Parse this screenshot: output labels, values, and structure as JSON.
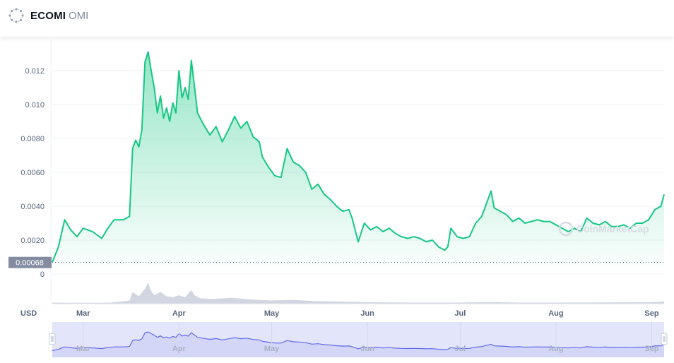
{
  "header": {
    "name": "ECOMI",
    "symbol": "OMI"
  },
  "currency_label": "USD",
  "reference_price_label": "0.00068",
  "watermark": "CoinMarketCap",
  "colors": {
    "line": "#16c784",
    "area_top": "#16c784",
    "volume": "#c2c8d5",
    "navigator_fill": "#e3e5fb",
    "navigator_line": "#6269ea",
    "reference_box": "#858ca2"
  },
  "chart_data": {
    "type": "line",
    "title": "",
    "xlabel": "",
    "ylabel": "",
    "x_ticks": [
      "Mar",
      "Apr",
      "May",
      "Jun",
      "Jul",
      "Aug",
      "Sep"
    ],
    "y_ticks": [
      "0.012",
      "0.010",
      "0.0080",
      "0.0060",
      "0.0040",
      "0.0020",
      "0"
    ],
    "ylim": [
      0,
      0.0131
    ],
    "xlim": [
      "2021-02-19",
      "2021-09-05"
    ],
    "reference_line": 0.00068,
    "grid": true,
    "series": [
      {
        "values": [
          [
            "2021-02-19",
            0.0007
          ],
          [
            "2021-02-21",
            0.0016
          ],
          [
            "2021-02-23",
            0.0032
          ],
          [
            "2021-02-25",
            0.0026
          ],
          [
            "2021-02-27",
            0.0022
          ],
          [
            "2021-03-01",
            0.0027
          ],
          [
            "2021-03-04",
            0.0025
          ],
          [
            "2021-03-07",
            0.0021
          ],
          [
            "2021-03-09",
            0.0027
          ],
          [
            "2021-03-11",
            0.0032
          ],
          [
            "2021-03-14",
            0.0032
          ],
          [
            "2021-03-16",
            0.0034
          ],
          [
            "2021-03-17",
            0.0074
          ],
          [
            "2021-03-18",
            0.0079
          ],
          [
            "2021-03-19",
            0.0075
          ],
          [
            "2021-03-20",
            0.0085
          ],
          [
            "2021-03-21",
            0.0125
          ],
          [
            "2021-03-22",
            0.0131
          ],
          [
            "2021-03-23",
            0.012
          ],
          [
            "2021-03-24",
            0.011
          ],
          [
            "2021-03-25",
            0.0095
          ],
          [
            "2021-03-26",
            0.0105
          ],
          [
            "2021-03-27",
            0.0092
          ],
          [
            "2021-03-28",
            0.0098
          ],
          [
            "2021-03-29",
            0.009
          ],
          [
            "2021-03-30",
            0.0101
          ],
          [
            "2021-03-31",
            0.0095
          ],
          [
            "2021-04-01",
            0.012
          ],
          [
            "2021-04-02",
            0.0104
          ],
          [
            "2021-04-03",
            0.011
          ],
          [
            "2021-04-04",
            0.0103
          ],
          [
            "2021-04-05",
            0.0126
          ],
          [
            "2021-04-06",
            0.0111
          ],
          [
            "2021-04-07",
            0.0095
          ],
          [
            "2021-04-09",
            0.0088
          ],
          [
            "2021-04-11",
            0.0082
          ],
          [
            "2021-04-13",
            0.0087
          ],
          [
            "2021-04-15",
            0.0078
          ],
          [
            "2021-04-17",
            0.0085
          ],
          [
            "2021-04-19",
            0.0093
          ],
          [
            "2021-04-21",
            0.0086
          ],
          [
            "2021-04-23",
            0.009
          ],
          [
            "2021-04-25",
            0.0081
          ],
          [
            "2021-04-27",
            0.0078
          ],
          [
            "2021-04-28",
            0.0069
          ],
          [
            "2021-04-30",
            0.0063
          ],
          [
            "2021-05-02",
            0.0058
          ],
          [
            "2021-05-04",
            0.0057
          ],
          [
            "2021-05-06",
            0.0074
          ],
          [
            "2021-05-08",
            0.0066
          ],
          [
            "2021-05-10",
            0.0064
          ],
          [
            "2021-05-12",
            0.006
          ],
          [
            "2021-05-14",
            0.005
          ],
          [
            "2021-05-16",
            0.0053
          ],
          [
            "2021-05-18",
            0.0047
          ],
          [
            "2021-05-20",
            0.0044
          ],
          [
            "2021-05-22",
            0.004
          ],
          [
            "2021-05-24",
            0.0037
          ],
          [
            "2021-05-26",
            0.0038
          ],
          [
            "2021-05-27",
            0.0033
          ],
          [
            "2021-05-29",
            0.0019
          ],
          [
            "2021-05-31",
            0.003
          ],
          [
            "2021-06-02",
            0.0026
          ],
          [
            "2021-06-04",
            0.0028
          ],
          [
            "2021-06-06",
            0.0025
          ],
          [
            "2021-06-08",
            0.0027
          ],
          [
            "2021-06-10",
            0.0024
          ],
          [
            "2021-06-12",
            0.0022
          ],
          [
            "2021-06-14",
            0.0021
          ],
          [
            "2021-06-16",
            0.0022
          ],
          [
            "2021-06-18",
            0.0021
          ],
          [
            "2021-06-20",
            0.0019
          ],
          [
            "2021-06-22",
            0.002
          ],
          [
            "2021-06-24",
            0.0016
          ],
          [
            "2021-06-26",
            0.0014
          ],
          [
            "2021-06-27",
            0.0016
          ],
          [
            "2021-06-28",
            0.0027
          ],
          [
            "2021-06-30",
            0.0022
          ],
          [
            "2021-07-02",
            0.0021
          ],
          [
            "2021-07-04",
            0.0022
          ],
          [
            "2021-07-06",
            0.003
          ],
          [
            "2021-07-08",
            0.0034
          ],
          [
            "2021-07-10",
            0.0044
          ],
          [
            "2021-07-11",
            0.0049
          ],
          [
            "2021-07-12",
            0.0039
          ],
          [
            "2021-07-14",
            0.0037
          ],
          [
            "2021-07-16",
            0.0035
          ],
          [
            "2021-07-18",
            0.0031
          ],
          [
            "2021-07-20",
            0.0033
          ],
          [
            "2021-07-22",
            0.003
          ],
          [
            "2021-07-24",
            0.0031
          ],
          [
            "2021-07-26",
            0.0032
          ],
          [
            "2021-07-28",
            0.0031
          ],
          [
            "2021-07-30",
            0.0031
          ],
          [
            "2021-08-01",
            0.0029
          ],
          [
            "2021-08-03",
            0.0027
          ],
          [
            "2021-08-05",
            0.0025
          ],
          [
            "2021-08-07",
            0.0027
          ],
          [
            "2021-08-09",
            0.0025
          ],
          [
            "2021-08-11",
            0.0033
          ],
          [
            "2021-08-13",
            0.003
          ],
          [
            "2021-08-15",
            0.0029
          ],
          [
            "2021-08-17",
            0.0031
          ],
          [
            "2021-08-19",
            0.0028
          ],
          [
            "2021-08-21",
            0.0028
          ],
          [
            "2021-08-23",
            0.0029
          ],
          [
            "2021-08-25",
            0.0027
          ],
          [
            "2021-08-27",
            0.003
          ],
          [
            "2021-08-29",
            0.003
          ],
          [
            "2021-08-31",
            0.0032
          ],
          [
            "2021-09-02",
            0.0038
          ],
          [
            "2021-09-04",
            0.004
          ],
          [
            "2021-09-05",
            0.0047
          ]
        ]
      }
    ],
    "volume": {
      "type": "area",
      "values": [
        [
          "2021-02-19",
          0.05
        ],
        [
          "2021-03-01",
          0.04
        ],
        [
          "2021-03-10",
          0.05
        ],
        [
          "2021-03-16",
          0.15
        ],
        [
          "2021-03-17",
          0.55
        ],
        [
          "2021-03-18",
          0.45
        ],
        [
          "2021-03-19",
          0.35
        ],
        [
          "2021-03-21",
          0.7
        ],
        [
          "2021-03-22",
          1.0
        ],
        [
          "2021-03-23",
          0.6
        ],
        [
          "2021-03-24",
          0.4
        ],
        [
          "2021-03-26",
          0.55
        ],
        [
          "2021-03-28",
          0.35
        ],
        [
          "2021-03-30",
          0.3
        ],
        [
          "2021-04-01",
          0.4
        ],
        [
          "2021-04-03",
          0.3
        ],
        [
          "2021-04-05",
          0.65
        ],
        [
          "2021-04-06",
          0.4
        ],
        [
          "2021-04-08",
          0.25
        ],
        [
          "2021-04-12",
          0.22
        ],
        [
          "2021-04-18",
          0.28
        ],
        [
          "2021-04-24",
          0.2
        ],
        [
          "2021-05-01",
          0.15
        ],
        [
          "2021-05-08",
          0.18
        ],
        [
          "2021-05-15",
          0.12
        ],
        [
          "2021-05-22",
          0.1
        ],
        [
          "2021-06-01",
          0.07
        ],
        [
          "2021-06-15",
          0.05
        ],
        [
          "2021-07-01",
          0.05
        ],
        [
          "2021-07-11",
          0.08
        ],
        [
          "2021-07-20",
          0.05
        ],
        [
          "2021-08-01",
          0.05
        ],
        [
          "2021-08-15",
          0.06
        ],
        [
          "2021-09-01",
          0.07
        ],
        [
          "2021-09-05",
          0.1
        ]
      ]
    }
  }
}
